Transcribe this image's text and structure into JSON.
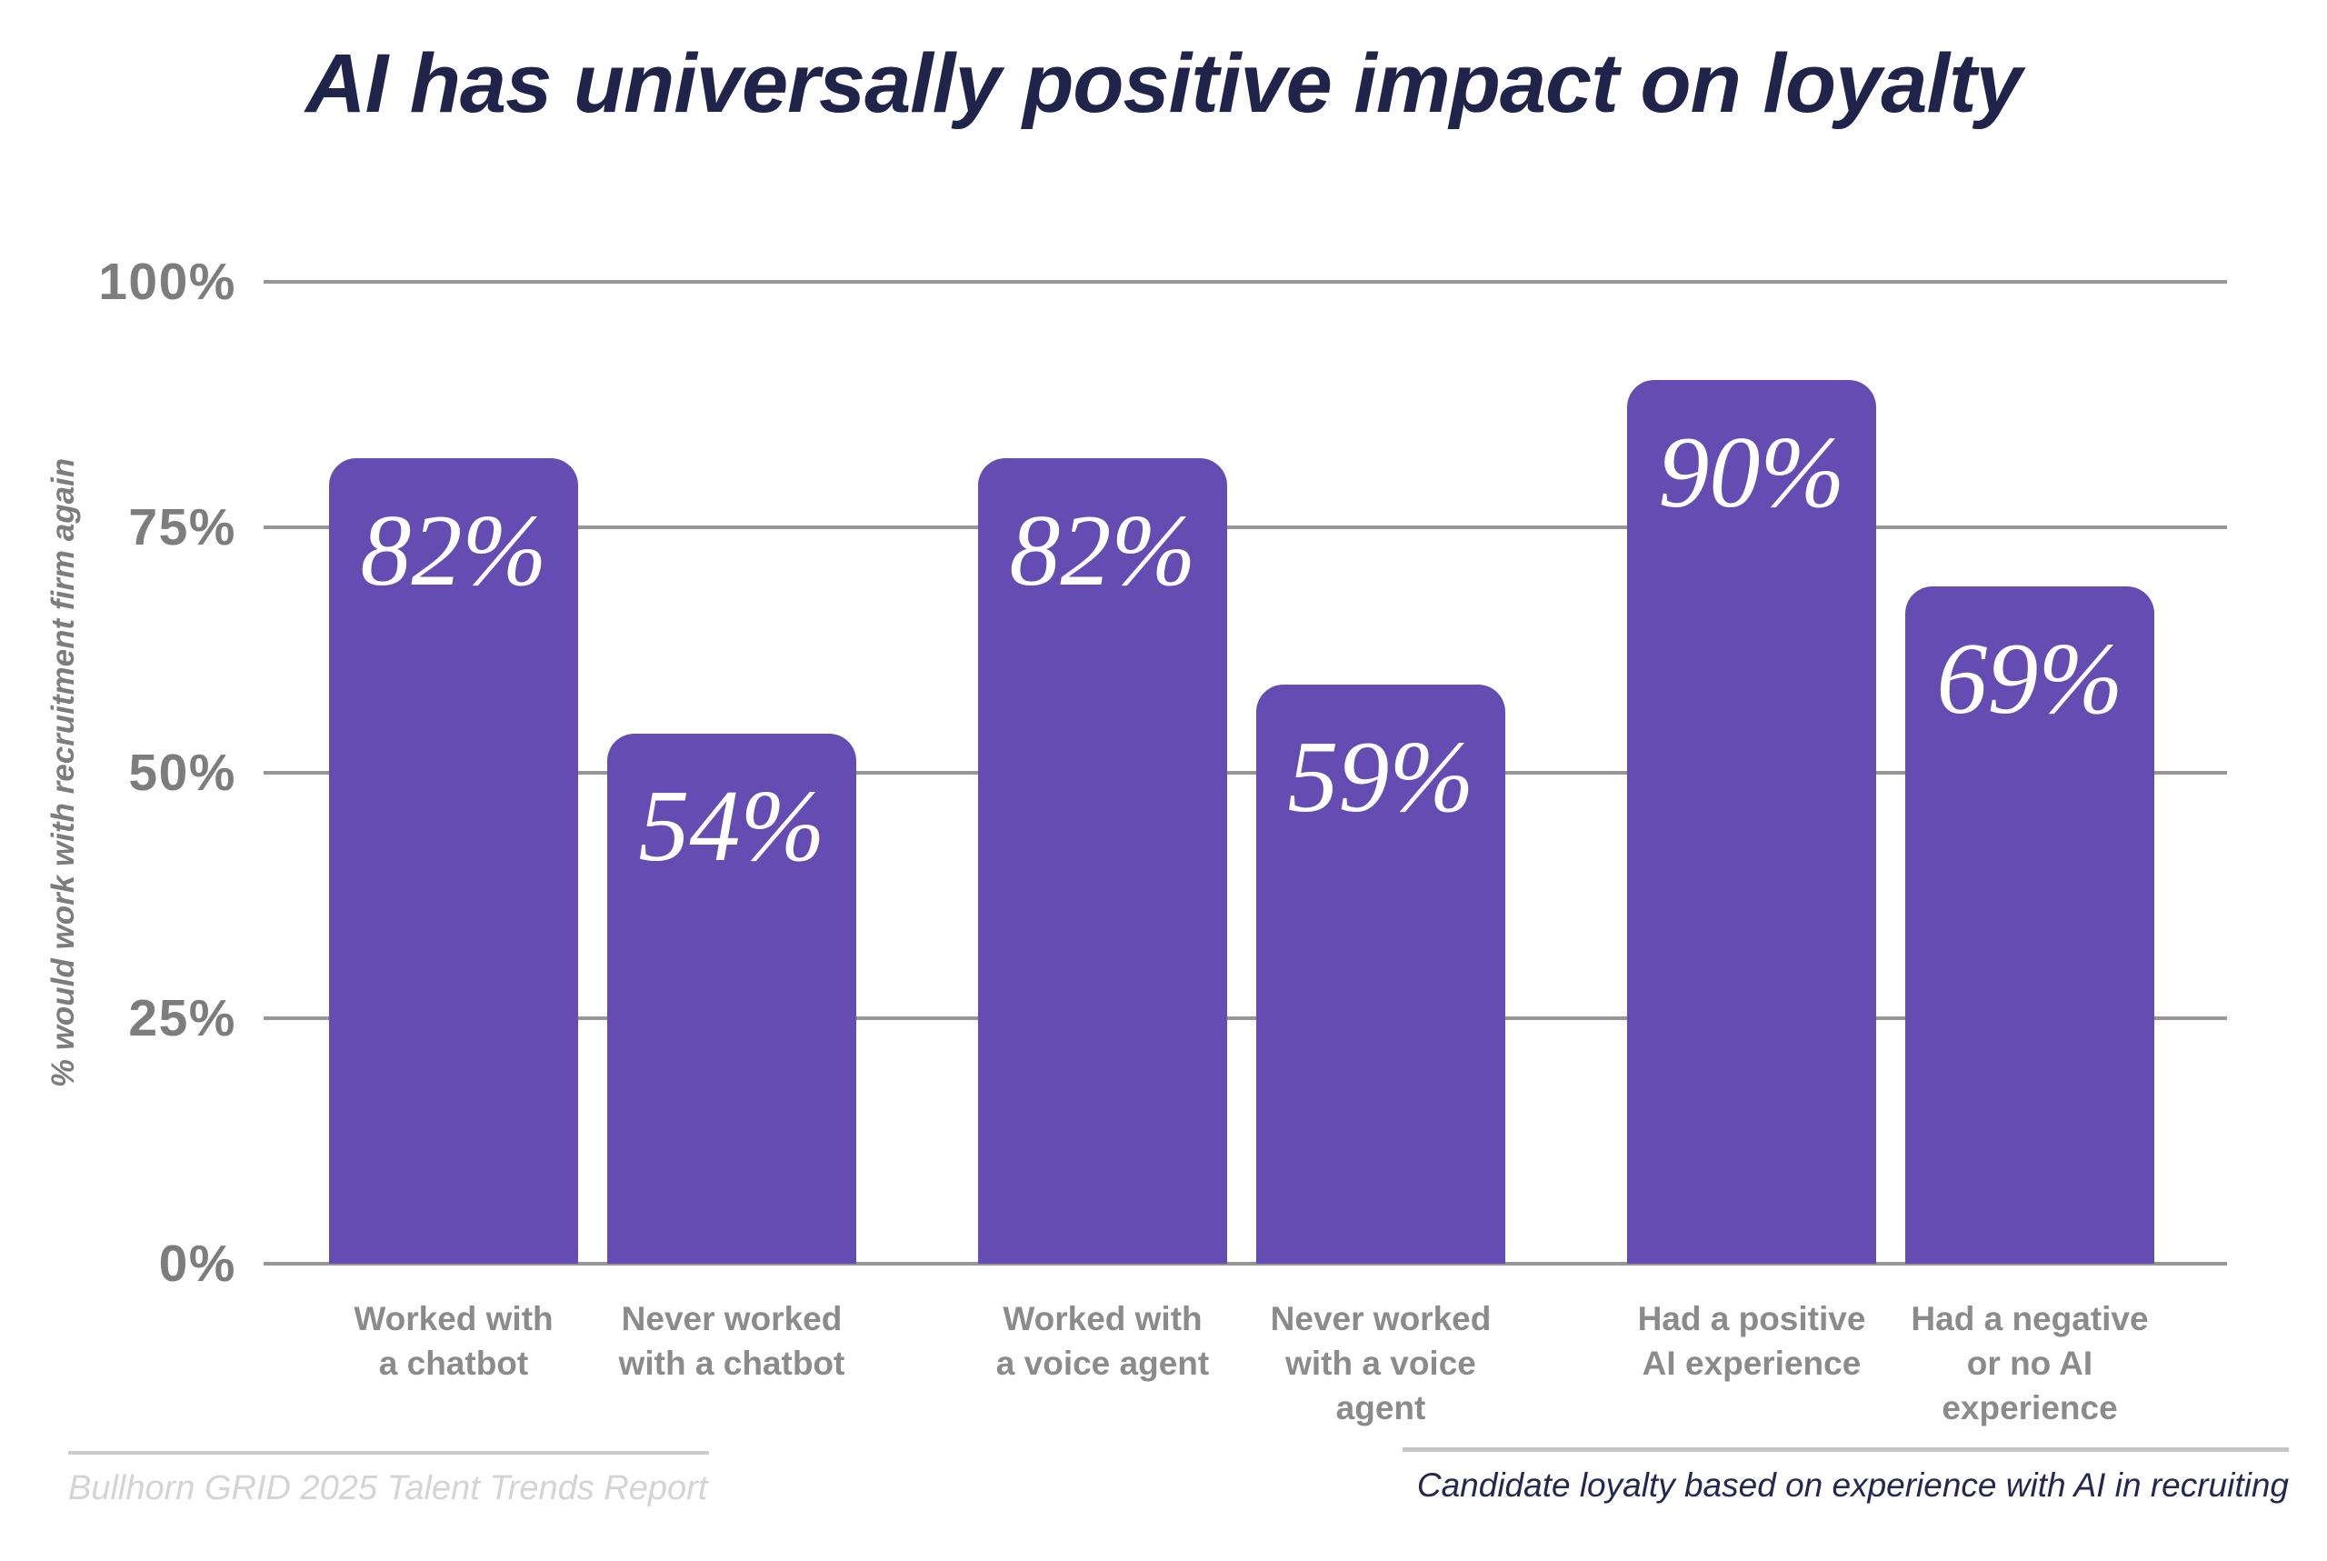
{
  "title": "AI has universally positive impact on loyalty",
  "chart_data": {
    "type": "bar",
    "title": "AI has universally positive impact on loyalty",
    "ylabel": "% would work with recruitment firm again",
    "xlabel": "",
    "ylim": [
      0,
      100
    ],
    "grid": true,
    "legend": false,
    "bar_color": "#654cb2",
    "value_label_color": "#ffffff",
    "yticks": [
      {
        "value": 0,
        "label": "0%"
      },
      {
        "value": 25,
        "label": "25%"
      },
      {
        "value": 50,
        "label": "50%"
      },
      {
        "value": 75,
        "label": "75%"
      },
      {
        "value": 100,
        "label": "100%"
      }
    ],
    "categories": [
      "Worked with\na chatbot",
      "Never worked\nwith a chatbot",
      "Worked with\na voice agent",
      "Never worked\nwith a voice\nagent",
      "Had a positive\nAI experience",
      "Had a negative\nor no AI\nexperience"
    ],
    "values": [
      82,
      54,
      82,
      59,
      90,
      69
    ],
    "value_labels": [
      "82%",
      "54%",
      "82%",
      "59%",
      "90%",
      "69%"
    ],
    "groups": [
      [
        0,
        1
      ],
      [
        2,
        3
      ],
      [
        4,
        5
      ]
    ]
  },
  "footer": {
    "source": "Bullhorn GRID 2025 Talent Trends Report",
    "caption": "Candidate loyalty based on experience with AI in recruiting"
  }
}
